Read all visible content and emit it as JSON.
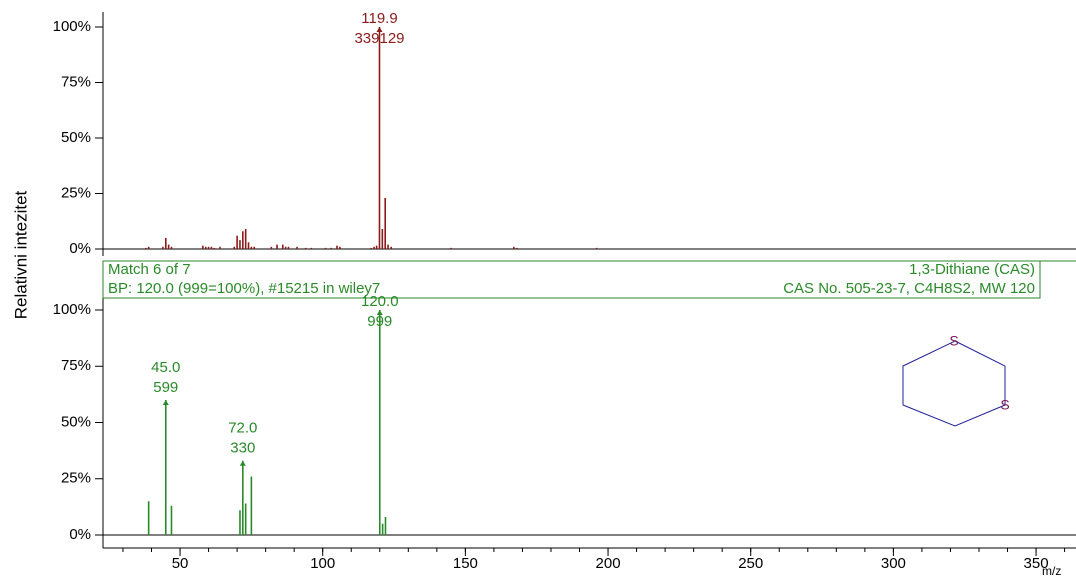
{
  "chart_data": [
    {
      "type": "bar",
      "y_label": "Relativni intezitet",
      "color": "#8b1a1a",
      "x": [
        38,
        39,
        44,
        45,
        46,
        47,
        58,
        59,
        60,
        61,
        62,
        64,
        69,
        70,
        71,
        72,
        73,
        74,
        75,
        76,
        82,
        84,
        86,
        87,
        88,
        91,
        94,
        96,
        101,
        103,
        105,
        106,
        117,
        118,
        118.9,
        119.9,
        120.9,
        121.9,
        122.9,
        124,
        145,
        167,
        168,
        196
      ],
      "values": [
        0.5,
        1,
        1,
        5,
        2,
        1,
        1.5,
        1,
        1,
        1,
        0.5,
        1,
        1,
        6,
        4,
        8,
        9,
        3,
        1,
        1,
        1,
        2,
        2,
        1,
        1,
        1,
        0.5,
        0.5,
        0.5,
        0.5,
        1.5,
        1,
        0.5,
        1,
        1.5,
        100,
        9,
        23,
        2,
        1,
        0.5,
        1,
        0.5,
        0.5
      ],
      "ylim": [
        0,
        100
      ],
      "yticks": [
        {
          "value": 0,
          "label": "0%"
        },
        {
          "value": 25,
          "label": "25%"
        },
        {
          "value": 50,
          "label": "50%"
        },
        {
          "value": 75,
          "label": "75%"
        },
        {
          "value": 100,
          "label": "100%"
        }
      ],
      "annotations": [
        {
          "x": 119.9,
          "label": "119.9",
          "count": 339129
        }
      ]
    },
    {
      "type": "bar",
      "color": "#2a8a2a",
      "header": {
        "match": "Match 6 of 7",
        "base_peak": "BP: 120.0 (999=100%),  #15215 in wiley7",
        "name": "1,3-Dithiane (CAS)",
        "info": "CAS No. 505-23-7, C4H8S2, MW 120"
      },
      "structure_atoms": [
        "S",
        "S"
      ],
      "x": [
        39,
        45,
        47,
        71,
        72,
        73,
        75,
        120,
        121,
        122
      ],
      "values": [
        15,
        60,
        13,
        11,
        33,
        14,
        26,
        100,
        5,
        8
      ],
      "ylim": [
        0,
        100
      ],
      "yticks": [
        {
          "value": 0,
          "label": "0%"
        },
        {
          "value": 25,
          "label": "25%"
        },
        {
          "value": 50,
          "label": "50%"
        },
        {
          "value": 75,
          "label": "75%"
        },
        {
          "value": 100,
          "label": "100%"
        }
      ],
      "annotations": [
        {
          "x": 45,
          "label": "45.0",
          "count": 599
        },
        {
          "x": 72,
          "label": "72.0",
          "count": 330
        },
        {
          "x": 120,
          "label": "120.0",
          "count": 999
        }
      ],
      "xlim": [
        23,
        364
      ],
      "xticks": [
        50,
        100,
        150,
        200,
        250,
        300,
        350
      ],
      "x_label": "m/z"
    }
  ]
}
